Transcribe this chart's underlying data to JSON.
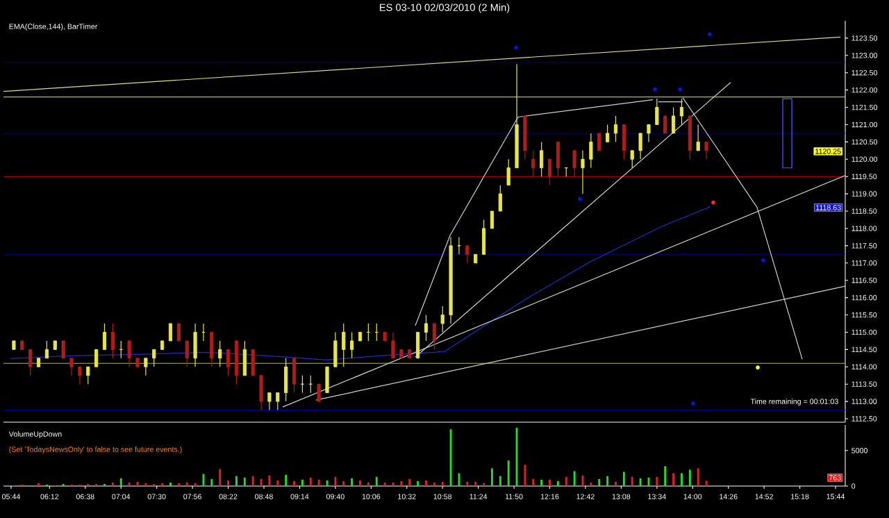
{
  "chart_data": [
    {
      "type": "candlestick",
      "title": "ES 03-10  02/03/2010 (2 Min)",
      "annotations": [
        "EMA(Close,144), BarTimer",
        "Time remaining = 00:01:03",
        "1120.25",
        "1118.63"
      ],
      "x": [
        5.7667,
        5.8667,
        5.9667,
        6.0667,
        6.1667,
        6.2667,
        6.3667,
        6.4667,
        6.5667,
        6.6667,
        6.7667,
        6.8667,
        6.9667,
        7.0667,
        7.1667,
        7.2667,
        7.3667,
        7.4667,
        7.5667,
        7.6667,
        7.7667,
        7.8667,
        7.9667,
        8.0667,
        8.1667,
        8.2667,
        8.3667,
        8.4667,
        8.5667,
        8.6667,
        8.7667,
        8.8667,
        8.9667,
        9.0667,
        9.1667,
        9.2667,
        9.3667,
        9.4667,
        9.5667,
        9.6667,
        9.7667,
        9.8667,
        9.9667,
        10.0667,
        10.1667,
        10.2667,
        10.3667,
        10.4667,
        10.5667,
        10.6667,
        10.7667,
        10.8667,
        10.9667,
        11.0667,
        11.1667,
        11.2667,
        11.3667,
        11.4667,
        11.5667,
        11.6667,
        11.7667,
        11.8667,
        11.9667,
        12.0667,
        12.1667,
        12.2667,
        12.3667,
        12.4667,
        12.5667,
        12.6667,
        12.7667,
        12.8667,
        12.9667,
        13.0667,
        13.1667,
        13.2667,
        13.3667,
        13.4667,
        13.5667,
        13.6667,
        13.7667,
        13.8667,
        13.9667,
        14.0667,
        14.1667
      ],
      "ohlc": [
        [
          1114.5,
          1114.75,
          1114.5,
          1114.75
        ],
        [
          1114.75,
          1114.75,
          1114.5,
          1114.5
        ],
        [
          1114.5,
          1114.5,
          1113.75,
          1114.0
        ],
        [
          1114.0,
          1114.25,
          1114.0,
          1114.25
        ],
        [
          1114.25,
          1114.75,
          1114.25,
          1114.5
        ],
        [
          1114.5,
          1114.75,
          1114.5,
          1114.75
        ],
        [
          1114.75,
          1114.75,
          1114.25,
          1114.25
        ],
        [
          1114.25,
          1114.25,
          1113.75,
          1114.0
        ],
        [
          1114.0,
          1114.0,
          1113.5,
          1113.75
        ],
        [
          1113.75,
          1114.0,
          1113.5,
          1114.0
        ],
        [
          1114.0,
          1114.5,
          1114.0,
          1114.5
        ],
        [
          1114.5,
          1115.25,
          1114.5,
          1115.0
        ],
        [
          1115.0,
          1115.25,
          1114.25,
          1114.5
        ],
        [
          1114.5,
          1114.75,
          1114.25,
          1114.5
        ],
        [
          1114.75,
          1114.75,
          1114.0,
          1114.25
        ],
        [
          1114.25,
          1114.25,
          1114.0,
          1114.0
        ],
        [
          1114.0,
          1114.25,
          1113.75,
          1114.25
        ],
        [
          1114.25,
          1114.5,
          1114.0,
          1114.5
        ],
        [
          1114.5,
          1114.75,
          1114.5,
          1114.75
        ],
        [
          1114.75,
          1115.25,
          1114.75,
          1115.25
        ],
        [
          1115.25,
          1115.25,
          1114.75,
          1114.75
        ],
        [
          1114.75,
          1114.75,
          1114.0,
          1114.25
        ],
        [
          1114.25,
          1115.25,
          1114.0,
          1115.0
        ],
        [
          1115.0,
          1115.25,
          1114.75,
          1115.0
        ],
        [
          1115.0,
          1115.0,
          1114.0,
          1114.25
        ],
        [
          1114.25,
          1114.75,
          1114.0,
          1114.5
        ],
        [
          1114.5,
          1114.5,
          1113.75,
          1114.0
        ],
        [
          1114.75,
          1114.75,
          1113.5,
          1113.75
        ],
        [
          1113.75,
          1114.75,
          1113.75,
          1114.5
        ],
        [
          1114.5,
          1114.5,
          1113.75,
          1113.75
        ],
        [
          1113.75,
          1113.75,
          1112.75,
          1113.0
        ],
        [
          1113.0,
          1113.25,
          1112.75,
          1113.25
        ],
        [
          1113.0,
          1113.25,
          1112.75,
          1113.25
        ],
        [
          1113.25,
          1114.25,
          1113.0,
          1114.0
        ],
        [
          1114.25,
          1114.25,
          1113.25,
          1113.5
        ],
        [
          1113.5,
          1113.75,
          1113.25,
          1113.5
        ],
        [
          1113.5,
          1113.75,
          1113.25,
          1113.5
        ],
        [
          1113.5,
          1113.5,
          1113.0,
          1113.0
        ],
        [
          1113.25,
          1114.0,
          1113.25,
          1114.0
        ],
        [
          1114.0,
          1115.0,
          1114.0,
          1114.75
        ],
        [
          1114.5,
          1115.25,
          1114.0,
          1115.0
        ],
        [
          1114.5,
          1115.0,
          1114.25,
          1114.75
        ],
        [
          1114.75,
          1115.0,
          1114.75,
          1115.0
        ],
        [
          1115.0,
          1115.25,
          1114.75,
          1115.0
        ],
        [
          1115.0,
          1115.25,
          1114.75,
          1115.0
        ],
        [
          1115.0,
          1115.0,
          1114.75,
          1114.75
        ],
        [
          1114.75,
          1115.0,
          1114.25,
          1114.25
        ],
        [
          1114.5,
          1114.5,
          1114.25,
          1114.25
        ],
        [
          1114.5,
          1114.5,
          1114.25,
          1114.25
        ],
        [
          1114.25,
          1115.0,
          1114.25,
          1115.0
        ],
        [
          1115.0,
          1115.5,
          1114.75,
          1115.25
        ],
        [
          1115.25,
          1115.25,
          1114.5,
          1114.75
        ],
        [
          1115.25,
          1115.75,
          1115.0,
          1115.5
        ],
        [
          1115.5,
          1117.75,
          1115.25,
          1117.5
        ],
        [
          1117.5,
          1117.75,
          1117.25,
          1117.5
        ],
        [
          1117.5,
          1117.5,
          1117.0,
          1117.25
        ],
        [
          1117.0,
          1117.25,
          1117.0,
          1117.25
        ],
        [
          1117.25,
          1118.25,
          1117.25,
          1118.0
        ],
        [
          1118.0,
          1118.5,
          1118.0,
          1118.5
        ],
        [
          1118.5,
          1119.25,
          1118.5,
          1119.0
        ],
        [
          1119.25,
          1120.0,
          1119.25,
          1119.75
        ],
        [
          1119.75,
          1122.75,
          1119.75,
          1121.0
        ],
        [
          1121.25,
          1121.25,
          1120.0,
          1120.25
        ],
        [
          1120.0,
          1120.25,
          1119.5,
          1119.75
        ],
        [
          1119.75,
          1120.5,
          1119.5,
          1120.25
        ],
        [
          1120.0,
          1120.0,
          1119.25,
          1119.5
        ],
        [
          1120.5,
          1120.5,
          1119.5,
          1119.75
        ],
        [
          1119.75,
          1119.75,
          1119.5,
          1119.75
        ],
        [
          1120.25,
          1120.25,
          1119.5,
          1119.75
        ],
        [
          1119.75,
          1120.25,
          1119.0,
          1120.0
        ],
        [
          1120.0,
          1120.75,
          1119.75,
          1120.5
        ],
        [
          1120.75,
          1120.75,
          1120.25,
          1120.25
        ],
        [
          1120.5,
          1121.0,
          1120.5,
          1120.75
        ],
        [
          1120.75,
          1121.25,
          1120.5,
          1121.0
        ],
        [
          1121.0,
          1121.0,
          1120.0,
          1120.25
        ],
        [
          1120.0,
          1120.25,
          1119.75,
          1120.25
        ],
        [
          1120.25,
          1120.75,
          1120.0,
          1120.75
        ],
        [
          1120.75,
          1121.0,
          1120.5,
          1121.0
        ],
        [
          1121.0,
          1121.75,
          1121.0,
          1121.5
        ],
        [
          1121.25,
          1121.25,
          1120.75,
          1120.75
        ],
        [
          1120.75,
          1121.5,
          1120.75,
          1121.25
        ],
        [
          1121.25,
          1121.75,
          1121.0,
          1121.5
        ],
        [
          1121.25,
          1121.25,
          1120.0,
          1120.25
        ],
        [
          1120.25,
          1121.0,
          1120.25,
          1120.5
        ],
        [
          1120.5,
          1120.5,
          1120.0,
          1120.25
        ]
      ],
      "colors": [
        "#e6e64c",
        "#b01c1c",
        "#b01c1c",
        "#e6e64c",
        "#e6e64c",
        "#e6e64c",
        "#b01c1c",
        "#b01c1c",
        "#b01c1c",
        "#e6e64c",
        "#e6e64c",
        "#e6e64c",
        "#b01c1c",
        "#e6e64c",
        "#b01c1c",
        "#b01c1c",
        "#e6e64c",
        "#e6e64c",
        "#e6e64c",
        "#e6e64c",
        "#b01c1c",
        "#b01c1c",
        "#e6e64c",
        "#e6e64c",
        "#b01c1c",
        "#e6e64c",
        "#b01c1c",
        "#b01c1c",
        "#e6e64c",
        "#b01c1c",
        "#b01c1c",
        "#e6e64c",
        "#e6e64c",
        "#e6e64c",
        "#b01c1c",
        "#e6e64c",
        "#e6e64c",
        "#b01c1c",
        "#e6e64c",
        "#e6e64c",
        "#e6e64c",
        "#e6e64c",
        "#e6e64c",
        "#e6e64c",
        "#e6e64c",
        "#b01c1c",
        "#b01c1c",
        "#b01c1c",
        "#b01c1c",
        "#e6e64c",
        "#e6e64c",
        "#b01c1c",
        "#e6e64c",
        "#e6e64c",
        "#e6e64c",
        "#b01c1c",
        "#e6e64c",
        "#e6e64c",
        "#e6e64c",
        "#e6e64c",
        "#e6e64c",
        "#e6e64c",
        "#b01c1c",
        "#b01c1c",
        "#e6e64c",
        "#b01c1c",
        "#b01c1c",
        "#e6e64c",
        "#b01c1c",
        "#e6e64c",
        "#e6e64c",
        "#b01c1c",
        "#e6e64c",
        "#e6e64c",
        "#b01c1c",
        "#e6e64c",
        "#e6e64c",
        "#e6e64c",
        "#e6e64c",
        "#b01c1c",
        "#e6e64c",
        "#e6e64c",
        "#b01c1c",
        "#e6e64c",
        "#b01c1c"
      ],
      "series": [
        {
          "type": "line",
          "color": "#2828c8",
          "x": [
            5.725,
            6.441,
            7.283,
            8.126,
            8.968,
            9.558,
            10.316,
            10.99,
            11.496,
            12.0,
            12.76,
            13.627,
            14.217
          ],
          "values": [
            1114.24,
            1114.32,
            1114.36,
            1114.42,
            1114.3,
            1114.2,
            1114.34,
            1114.44,
            1115.22,
            1115.99,
            1117.04,
            1118.06,
            1118.63
          ]
        },
        {
          "type": "line",
          "color": "#e0e080",
          "x": [
            5.641,
            15.792
          ],
          "values": [
            1121.96,
            1123.53
          ]
        },
        {
          "type": "line",
          "color": "#d0d0d0",
          "x": [
            9.027,
            15.85
          ],
          "values": [
            1112.84,
            1119.53
          ]
        },
        {
          "type": "line",
          "color": "#d0d0d0",
          "x": [
            9.432,
            15.85
          ],
          "values": [
            1113.04,
            1116.33
          ]
        },
        {
          "type": "line",
          "color": "#d0d0d0",
          "x": [
            10.636,
            14.461
          ],
          "values": [
            1114.28,
            1122.22
          ]
        },
        {
          "type": "line",
          "color": "#d0d0d0",
          "x": [
            10.636,
            11.058,
            11.883,
            13.518
          ],
          "values": [
            1115.19,
            1117.8,
            1121.22,
            1121.72
          ]
        },
        {
          "type": "line",
          "color": "#d0d0d0",
          "x": [
            13.585,
            13.88
          ],
          "values": [
            1121.66,
            1121.66
          ]
        },
        {
          "type": "line",
          "color": "#d0d0d0",
          "x": [
            13.88,
            14.781,
            15.329
          ],
          "values": [
            1121.78,
            1118.61,
            1114.22
          ]
        },
        {
          "type": "bar",
          "color": "#5a5aff",
          "x": [
            15.148
          ],
          "base": [
            1119.75
          ],
          "values": [
            2.0
          ]
        },
        {
          "type": "scatter",
          "marker": "circle",
          "x": [
            11.858,
            14.208,
            13.543,
            13.846,
            12.633,
            14.25,
            14.857,
            14.79,
            14.006
          ],
          "values": [
            1123.23,
            1123.61,
            1122.02,
            1122.02,
            1118.85,
            1118.75,
            1117.08,
            1113.98,
            1112.94
          ],
          "colors": [
            "#1010e0",
            "#1010e0",
            "#1010e0",
            "#1010e0",
            "#1010e0",
            "#ff3030",
            "#1010e0",
            "#ffff20",
            "#1010e0"
          ]
        }
      ],
      "ref_lines": [
        {
          "axis": "y",
          "value": 1122.8,
          "color": "#000090"
        },
        {
          "axis": "y",
          "value": 1121.8,
          "color": "#c0c000"
        },
        {
          "axis": "y",
          "value": 1120.75,
          "color": "#000090"
        },
        {
          "axis": "y",
          "value": 1119.5,
          "color": "#d00000"
        },
        {
          "axis": "y",
          "value": 1117.25,
          "color": "#000090"
        },
        {
          "axis": "y",
          "value": 1114.1,
          "color": "#c0c000"
        },
        {
          "axis": "y",
          "value": 1112.75,
          "color": "#000090"
        }
      ],
      "xlim": [
        5.641,
        15.851
      ],
      "ylim": [
        1112.4,
        1124.0
      ],
      "tick_labels": "y",
      "yticks": [
        {
          "value": 1112.5,
          "label": "1112.50"
        },
        {
          "value": 1113.0,
          "label": "1113.00"
        },
        {
          "value": 1113.5,
          "label": "1113.50"
        },
        {
          "value": 1114.0,
          "label": "1114.00"
        },
        {
          "value": 1114.5,
          "label": "1114.50"
        },
        {
          "value": 1115.0,
          "label": "1115.00"
        },
        {
          "value": 1115.5,
          "label": "1115.50"
        },
        {
          "value": 1116.0,
          "label": "1116.00"
        },
        {
          "value": 1116.5,
          "label": "1116.50"
        },
        {
          "value": 1117.0,
          "label": "1117.00"
        },
        {
          "value": 1117.5,
          "label": "1117.50"
        },
        {
          "value": 1118.0,
          "label": "1118.00"
        },
        {
          "value": 1118.5,
          "label": "1118.50"
        },
        {
          "value": 1119.0,
          "label": "1119.00"
        },
        {
          "value": 1119.5,
          "label": "1119.50"
        },
        {
          "value": 1120.0,
          "label": "1120.00"
        },
        {
          "value": 1120.5,
          "label": "1120.50"
        },
        {
          "value": 1121.0,
          "label": "1121.00"
        },
        {
          "value": 1121.5,
          "label": "1121.50"
        },
        {
          "value": 1122.0,
          "label": "1122.00"
        },
        {
          "value": 1122.5,
          "label": "1122.50"
        },
        {
          "value": 1123.0,
          "label": "1123.00"
        },
        {
          "value": 1123.5,
          "label": "1123.50"
        }
      ]
    },
    {
      "type": "bar",
      "title": "VolumeUpDown",
      "annotations": [
        "(Set 'TodaysNewsOnly' to false to see future events.)",
        "763"
      ],
      "x": [
        5.7667,
        5.8667,
        5.9667,
        6.0667,
        6.1667,
        6.2667,
        6.3667,
        6.4667,
        6.5667,
        6.6667,
        6.7667,
        6.8667,
        6.9667,
        7.0667,
        7.1667,
        7.2667,
        7.3667,
        7.4667,
        7.5667,
        7.6667,
        7.7667,
        7.8667,
        7.9667,
        8.0667,
        8.1667,
        8.2667,
        8.3667,
        8.4667,
        8.5667,
        8.6667,
        8.7667,
        8.8667,
        8.9667,
        9.0667,
        9.1667,
        9.2667,
        9.3667,
        9.4667,
        9.5667,
        9.6667,
        9.7667,
        9.8667,
        9.9667,
        10.0667,
        10.1667,
        10.2667,
        10.3667,
        10.4667,
        10.5667,
        10.6667,
        10.7667,
        10.8667,
        10.9667,
        11.0667,
        11.1667,
        11.2667,
        11.3667,
        11.4667,
        11.5667,
        11.6667,
        11.7667,
        11.8667,
        11.9667,
        12.0667,
        12.1667,
        12.2667,
        12.3667,
        12.4667,
        12.5667,
        12.6667,
        12.7667,
        12.8667,
        12.9667,
        13.0667,
        13.1667,
        13.2667,
        13.3667,
        13.4667,
        13.5667,
        13.6667,
        13.7667,
        13.8667,
        13.9667,
        14.0667,
        14.1667
      ],
      "values": [
        100,
        200,
        100,
        400,
        200,
        100,
        300,
        200,
        200,
        300,
        300,
        300,
        500,
        1100,
        500,
        600,
        400,
        300,
        400,
        500,
        400,
        500,
        400,
        1700,
        1000,
        2400,
        800,
        1400,
        1200,
        1400,
        1000,
        1500,
        800,
        1600,
        700,
        900,
        1200,
        900,
        800,
        1300,
        700,
        1100,
        800,
        500,
        1300,
        500,
        500,
        700,
        1000,
        700,
        800,
        500,
        600,
        8000,
        1800,
        600,
        600,
        400,
        2500,
        1400,
        3600,
        8200,
        3000,
        1000,
        900,
        900,
        700,
        1300,
        2100,
        1500,
        500,
        1000,
        1400,
        600,
        2000,
        1300,
        1100,
        1200,
        1300,
        2800,
        1800,
        1800,
        2300,
        2500,
        763
      ],
      "colors": [
        "#dd2222",
        "#dd2222",
        "#22dd22",
        "#dd2222",
        "#22dd22",
        "#dd2222",
        "#22dd22",
        "#dd2222",
        "#dd2222",
        "#dd2222",
        "#dd2222",
        "#22dd22",
        "#dd2222",
        "#22dd22",
        "#dd2222",
        "#dd2222",
        "#dd2222",
        "#dd2222",
        "#dd2222",
        "#22dd22",
        "#dd2222",
        "#dd2222",
        "#dd2222",
        "#22dd22",
        "#22dd22",
        "#dd2222",
        "#dd2222",
        "#22dd22",
        "#22dd22",
        "#dd2222",
        "#dd2222",
        "#dd2222",
        "#dd2222",
        "#22dd22",
        "#dd2222",
        "#22dd22",
        "#dd2222",
        "#dd2222",
        "#22dd22",
        "#dd2222",
        "#dd2222",
        "#22dd22",
        "#dd2222",
        "#dd2222",
        "#22dd22",
        "#dd2222",
        "#dd2222",
        "#dd2222",
        "#dd2222",
        "#22dd22",
        "#dd2222",
        "#dd2222",
        "#dd2222",
        "#22dd22",
        "#22dd22",
        "#dd2222",
        "#dd2222",
        "#dd2222",
        "#22dd22",
        "#22dd22",
        "#22dd22",
        "#22dd22",
        "#dd2222",
        "#dd2222",
        "#22dd22",
        "#dd2222",
        "#22dd22",
        "#dd2222",
        "#22dd22",
        "#dd2222",
        "#dd2222",
        "#22dd22",
        "#22dd22",
        "#dd2222",
        "#22dd22",
        "#dd2222",
        "#22dd22",
        "#22dd22",
        "#dd2222",
        "#22dd22",
        "#dd2222",
        "#22dd22",
        "#22dd22",
        "#dd2222",
        "#dd2222"
      ],
      "xlim": [
        5.641,
        15.851
      ],
      "ylim": [
        0,
        8600
      ],
      "yticks": [
        0,
        5000
      ],
      "xticks": [
        {
          "value": 5.7333,
          "label": "05:44"
        },
        {
          "value": 6.2,
          "label": "06:12"
        },
        {
          "value": 6.6333,
          "label": "06:38"
        },
        {
          "value": 7.0667,
          "label": "07:04"
        },
        {
          "value": 7.5,
          "label": "07:30"
        },
        {
          "value": 7.9333,
          "label": "07:56"
        },
        {
          "value": 8.3667,
          "label": "08:22"
        },
        {
          "value": 8.8,
          "label": "08:48"
        },
        {
          "value": 9.2333,
          "label": "09:14"
        },
        {
          "value": 9.6667,
          "label": "09:40"
        },
        {
          "value": 10.1,
          "label": "10:06"
        },
        {
          "value": 10.5333,
          "label": "10:32"
        },
        {
          "value": 10.9667,
          "label": "10:58"
        },
        {
          "value": 11.4,
          "label": "11:24"
        },
        {
          "value": 11.8333,
          "label": "11:50"
        },
        {
          "value": 12.2667,
          "label": "12:16"
        },
        {
          "value": 12.7,
          "label": "12:42"
        },
        {
          "value": 13.1333,
          "label": "13:08"
        },
        {
          "value": 13.5667,
          "label": "13:34"
        },
        {
          "value": 14.0,
          "label": "14:00"
        },
        {
          "value": 14.4333,
          "label": "14:26"
        },
        {
          "value": 14.8667,
          "label": "14:52"
        },
        {
          "value": 15.3,
          "label": "15:18"
        },
        {
          "value": 15.7333,
          "label": "15:44"
        }
      ]
    }
  ]
}
